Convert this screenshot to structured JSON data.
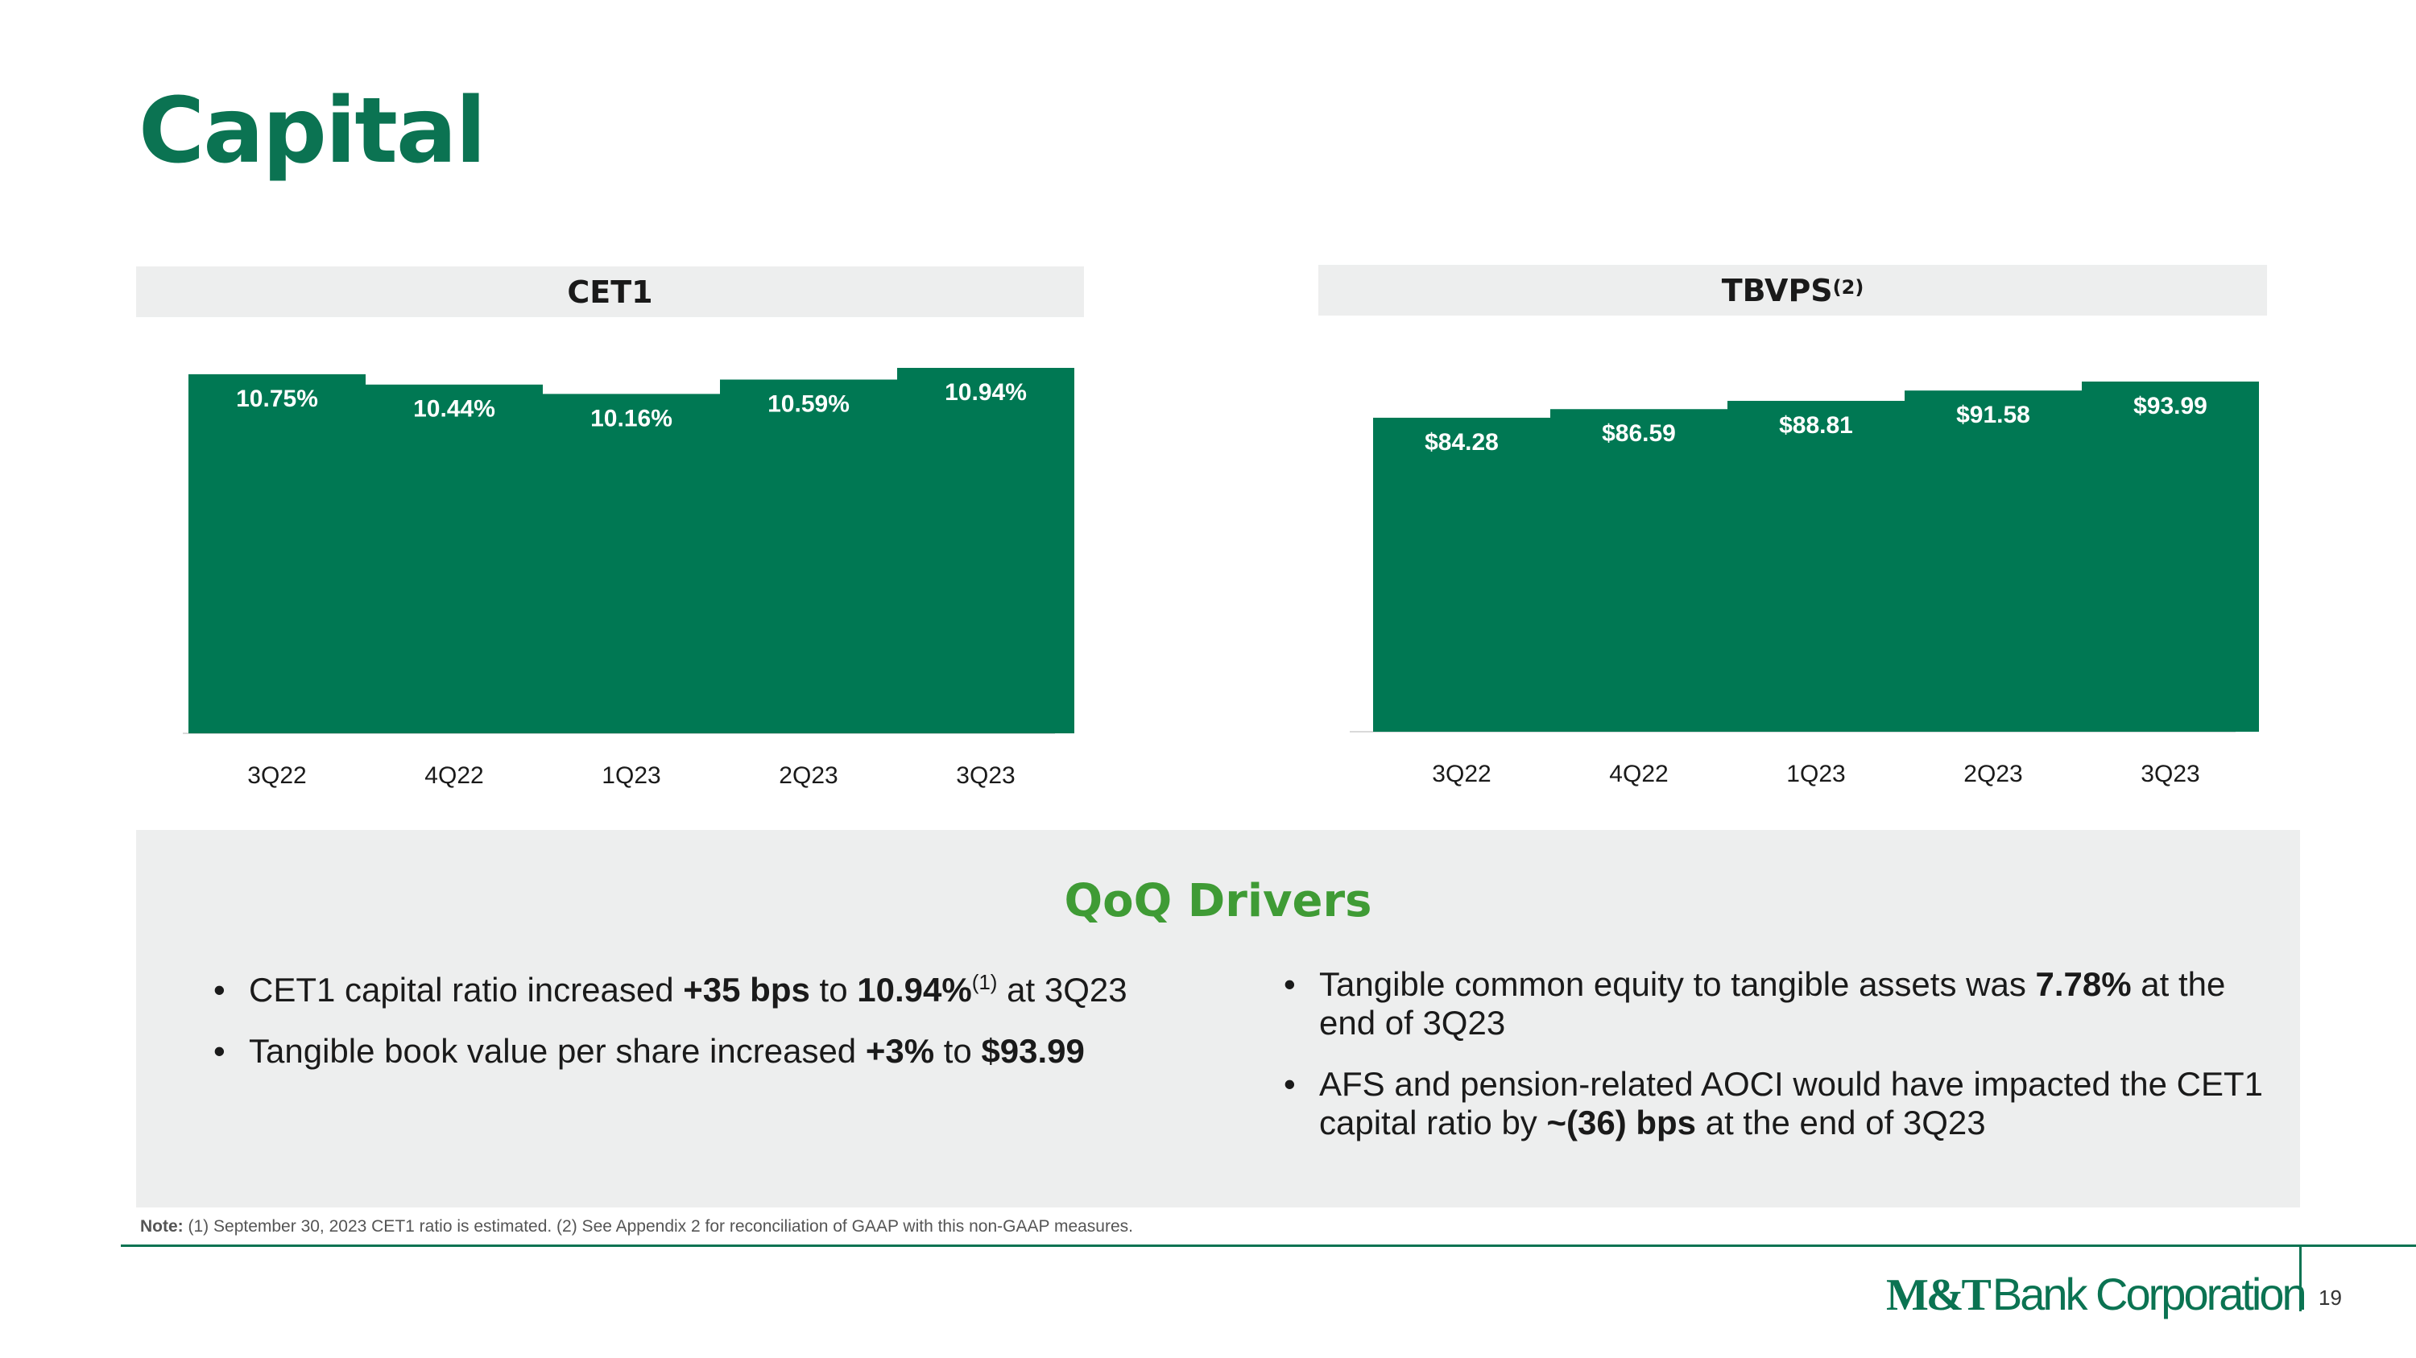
{
  "title": "Capital",
  "charts": {
    "cet1": {
      "header": "CET1",
      "header_sup": ""
    },
    "tbvps": {
      "header": "TBVPS",
      "header_sup": "(2)"
    }
  },
  "chart_data": [
    {
      "type": "bar",
      "title": "CET1",
      "categories": [
        "3Q22",
        "4Q22",
        "1Q23",
        "2Q23",
        "3Q23"
      ],
      "values": [
        10.75,
        10.44,
        10.16,
        10.59,
        10.94
      ],
      "data_labels": [
        "10.75%",
        "10.44%",
        "10.16%",
        "10.59%",
        "10.94%"
      ],
      "xlabel": "",
      "ylabel": "",
      "ylim": [
        0,
        11.3
      ],
      "bar_color": "#007853"
    },
    {
      "type": "bar",
      "title": "TBVPS(2)",
      "categories": [
        "3Q22",
        "4Q22",
        "1Q23",
        "2Q23",
        "3Q23"
      ],
      "values": [
        84.28,
        86.59,
        88.81,
        91.58,
        93.99
      ],
      "data_labels": [
        "$84.28",
        "$86.59",
        "$88.81",
        "$91.58",
        "$93.99"
      ],
      "xlabel": "",
      "ylabel": "",
      "ylim": [
        0,
        97
      ],
      "bar_color": "#007853"
    }
  ],
  "drivers": {
    "title": "QoQ Drivers",
    "left": [
      {
        "t1": "CET1 capital ratio increased ",
        "b1": "+35 bps",
        "t2": " to ",
        "b2": "10.94%",
        "sup": "(1)",
        "t3": " at 3Q23"
      },
      {
        "t1": "Tangible book value per share increased ",
        "b1": "+3%",
        "t2": " to ",
        "b2": "$93.99"
      }
    ],
    "right": [
      {
        "t1": "Tangible common equity to tangible assets was ",
        "b1": "7.78%",
        "t2": " at the end of 3Q23"
      },
      {
        "t1": "AFS and pension-related AOCI would have impacted the CET1 capital ratio by ",
        "b1": "~(36) bps",
        "t2": " at the end of 3Q23"
      }
    ]
  },
  "footnote": {
    "label": "Note:",
    "text": " (1) September 30, 2023 CET1 ratio is estimated. (2) See Appendix 2 for reconciliation of GAAP with this non-GAAP measures."
  },
  "footer": {
    "logo_mark": "M&T",
    "logo_name": "Bank Corporation",
    "page_number": "19"
  },
  "colors": {
    "brand_green": "#0b7352",
    "bar_green": "#007853",
    "drivers_green": "#3f9b35",
    "panel_gray": "#edeeee"
  },
  "icons": [
    "mt-bank-logo"
  ]
}
